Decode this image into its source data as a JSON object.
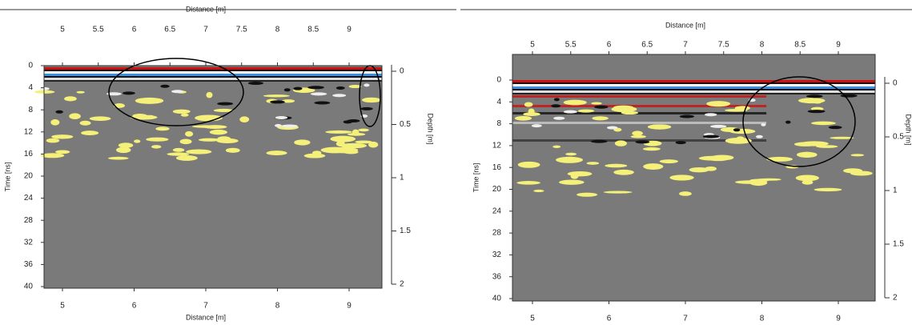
{
  "panels": [
    {
      "top_axis": {
        "title": "Distance [m]",
        "ticks": [
          "5",
          "5.5",
          "6",
          "6.5",
          "7",
          "7.5",
          "8",
          "8.5",
          "9"
        ]
      },
      "bottom_axis": {
        "title": "Distance [m]",
        "ticks": [
          "5",
          "6",
          "7",
          "8",
          "9"
        ]
      },
      "left_axis": {
        "title": "Time [ns]",
        "ticks": [
          "0",
          "4",
          "8",
          "12",
          "16",
          "20",
          "24",
          "28",
          "32",
          "36",
          "40"
        ]
      },
      "right_axis": {
        "title": "Depth [m]",
        "ticks": [
          "0",
          "0.5",
          "1",
          "1.5",
          "2"
        ]
      }
    },
    {
      "top_axis": {
        "title": "Distance [m]",
        "ticks": [
          "5",
          "5.5",
          "6",
          "6.5",
          "7",
          "7.5",
          "8",
          "8.5",
          "9"
        ]
      },
      "bottom_axis": {
        "ticks": [
          "5",
          "6",
          "7",
          "8",
          "9"
        ]
      },
      "left_axis": {
        "title": "Time [ns]",
        "ticks": [
          "0",
          "4",
          "8",
          "12",
          "16",
          "20",
          "24",
          "28",
          "32",
          "36",
          "40"
        ]
      },
      "right_axis": {
        "title": "Depth [m]",
        "ticks": [
          "0",
          "0.5",
          "1",
          "1.5",
          "2"
        ]
      }
    }
  ]
}
